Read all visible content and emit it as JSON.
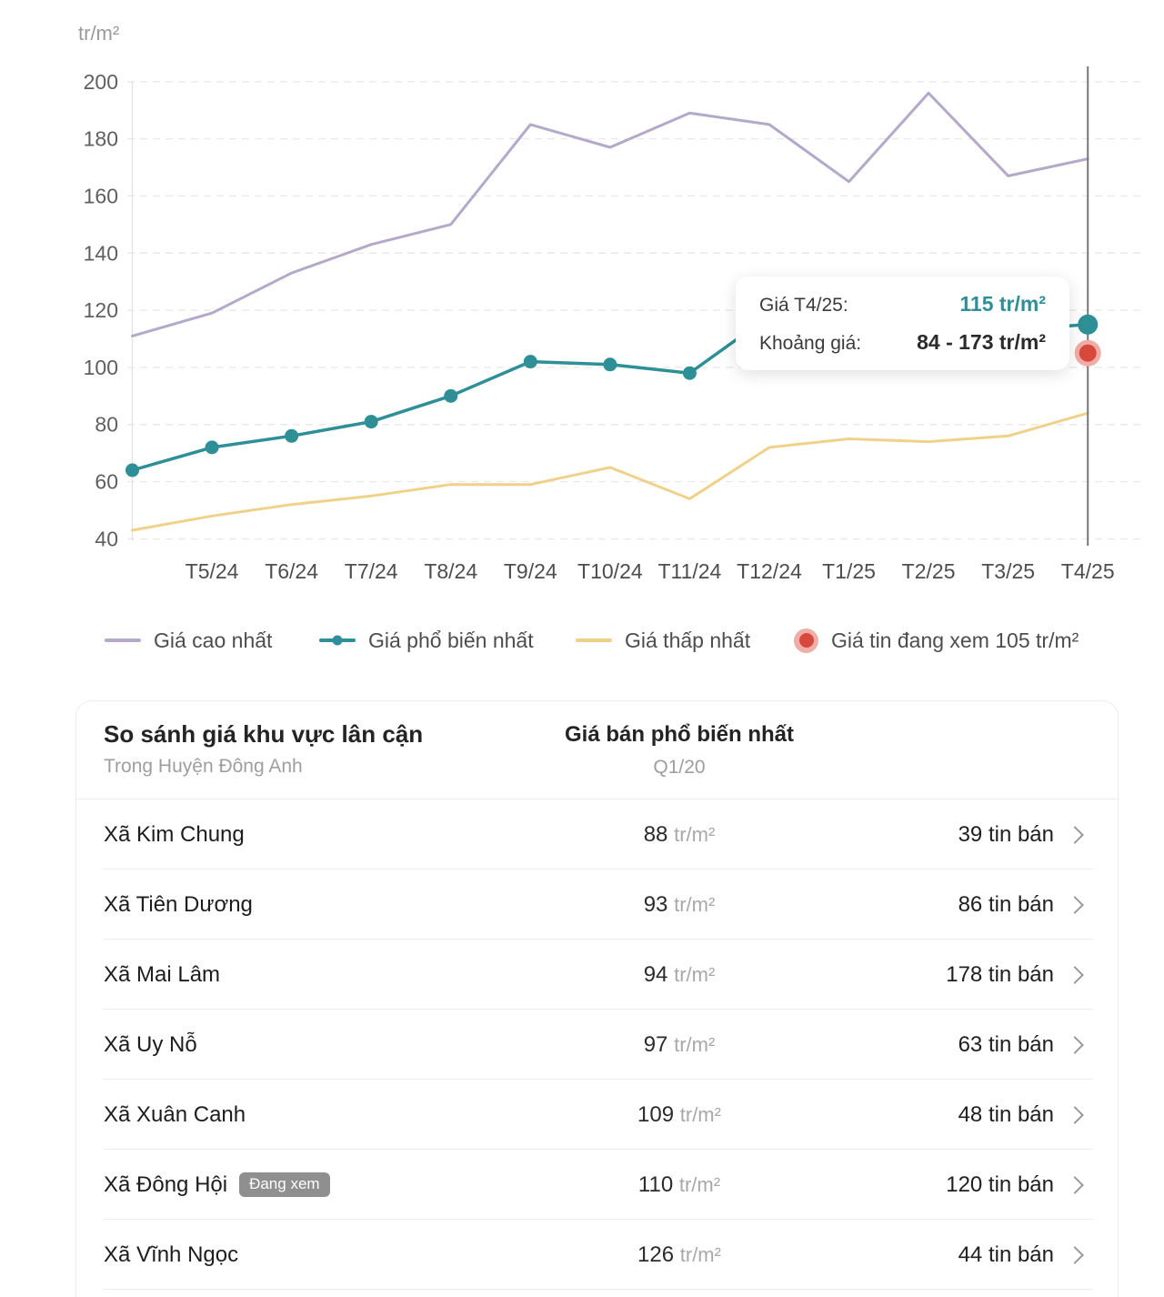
{
  "chart": {
    "unit_label": "tr/m²",
    "tooltip": {
      "row1_label": "Giá T4/25:",
      "row1_value": "115 tr/m²",
      "row2_label": "Khoảng giá:",
      "row2_value": "84 - 173 tr/m²"
    },
    "legend": [
      {
        "label": "Giá cao nhất",
        "color": "#b4a9c9",
        "type": "line"
      },
      {
        "label": "Giá phổ biến nhất",
        "color": "#2e8f96",
        "type": "line-dot"
      },
      {
        "label": "Giá thấp nhất",
        "color": "#f0d18a",
        "type": "line"
      },
      {
        "label": "Giá tin đang xem 105 tr/m²",
        "color": "#d8493d",
        "type": "dot"
      }
    ]
  },
  "chart_data": {
    "type": "line",
    "title": "",
    "xlabel": "",
    "ylabel": "tr/m²",
    "categories": [
      "",
      "T5/24",
      "T6/24",
      "T7/24",
      "T8/24",
      "T9/24",
      "T10/24",
      "T11/24",
      "T12/24",
      "T1/25",
      "T2/25",
      "T3/25",
      "T4/25"
    ],
    "series": [
      {
        "name": "Giá cao nhất",
        "color": "#b4a9c9",
        "markers": false,
        "values": [
          111,
          119,
          133,
          143,
          150,
          185,
          177,
          189,
          185,
          165,
          196,
          167,
          173
        ]
      },
      {
        "name": "Giá phổ biến nhất",
        "color": "#2e8f96",
        "markers": true,
        "values": [
          64,
          72,
          76,
          81,
          90,
          102,
          101,
          98,
          118,
          114,
          116,
          113,
          115
        ]
      },
      {
        "name": "Giá thấp nhất",
        "color": "#f0d18a",
        "markers": false,
        "values": [
          43,
          48,
          52,
          55,
          59,
          59,
          65,
          54,
          72,
          75,
          74,
          76,
          84
        ]
      }
    ],
    "y_ticks": [
      200,
      180,
      160,
      140,
      120,
      100,
      80,
      60,
      40
    ],
    "ylim": [
      40,
      200
    ],
    "grid": true,
    "legend_position": "bottom",
    "highlight": {
      "category": "T4/25",
      "current_value": 115,
      "viewing_value": 105,
      "range_min": 84,
      "range_max": 173
    }
  },
  "table": {
    "title": "So sánh giá khu vực lân cận",
    "subtitle": "Trong Huyện Đông Anh",
    "price_column_header": "Giá bán phổ biến nhất",
    "price_column_subheader": "Q1/20",
    "price_unit": "tr/m²",
    "rows": [
      {
        "name": "Xã Kim Chung",
        "badge": "",
        "price": "88",
        "listings": "39 tin bán"
      },
      {
        "name": "Xã Tiên Dương",
        "badge": "",
        "price": "93",
        "listings": "86 tin bán"
      },
      {
        "name": "Xã Mai Lâm",
        "badge": "",
        "price": "94",
        "listings": "178 tin bán"
      },
      {
        "name": "Xã Uy Nỗ",
        "badge": "",
        "price": "97",
        "listings": "63 tin bán"
      },
      {
        "name": "Xã Xuân Canh",
        "badge": "",
        "price": "109",
        "listings": "48 tin bán"
      },
      {
        "name": "Xã Đông Hội",
        "badge": "Đang xem",
        "price": "110",
        "listings": "120 tin bán"
      },
      {
        "name": "Xã Vĩnh Ngọc",
        "badge": "",
        "price": "126",
        "listings": "44 tin bán"
      }
    ]
  }
}
